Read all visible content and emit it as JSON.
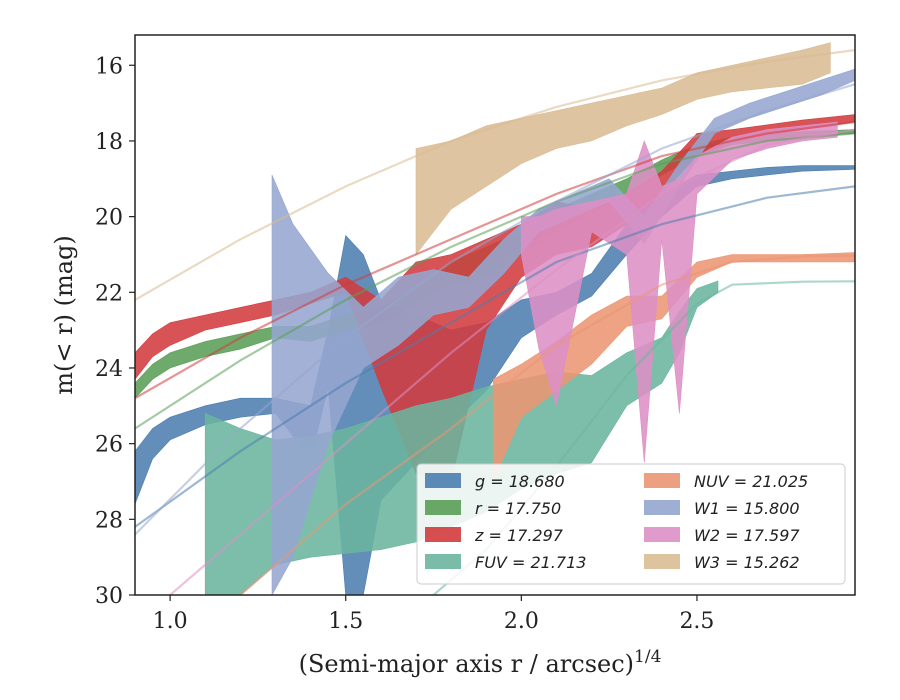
{
  "chart_data": {
    "type": "area",
    "xlabel": "(Semi-major axis r / arcsec)",
    "xlabel_superscript": "1/4",
    "ylabel": "m(< r) (mag)",
    "xlim": [
      0.9,
      2.95
    ],
    "ylim": [
      30,
      15.2
    ],
    "y_inverted": true,
    "xticks": [
      1.0,
      1.5,
      2.0,
      2.5
    ],
    "xtick_labels": [
      "1.0",
      "1.5",
      "2.0",
      "2.5"
    ],
    "yticks": [
      16,
      18,
      20,
      22,
      24,
      26,
      28,
      30
    ],
    "ytick_labels": [
      "16",
      "18",
      "20",
      "22",
      "24",
      "26",
      "28",
      "30"
    ],
    "grid": false,
    "legend_position": "lower-right",
    "series": [
      {
        "name": "g",
        "legend_label": "g = 18.680",
        "color": "#4c7eaf",
        "band": [
          [
            0.9,
            26.2,
            27.6
          ],
          [
            0.95,
            25.6,
            26.4
          ],
          [
            1.0,
            25.3,
            25.9
          ],
          [
            1.1,
            25.0,
            25.5
          ],
          [
            1.2,
            24.8,
            25.3
          ],
          [
            1.3,
            24.8,
            25.2
          ],
          [
            1.4,
            25.0,
            26.4
          ],
          [
            1.45,
            23.0,
            24.5
          ],
          [
            1.5,
            20.5,
            30.0
          ],
          [
            1.55,
            21.0,
            30.0
          ],
          [
            1.6,
            22.2,
            27.5
          ],
          [
            1.7,
            22.6,
            26.5
          ],
          [
            1.8,
            23.0,
            25.5
          ],
          [
            1.9,
            22.8,
            24.6
          ],
          [
            2.0,
            22.2,
            23.2
          ],
          [
            2.1,
            22.0,
            22.6
          ],
          [
            2.2,
            21.5,
            22.1
          ],
          [
            2.3,
            20.2,
            21.0
          ],
          [
            2.4,
            19.4,
            20.0
          ],
          [
            2.5,
            18.9,
            19.2
          ],
          [
            2.6,
            18.8,
            19.0
          ],
          [
            2.7,
            18.7,
            18.9
          ],
          [
            2.8,
            18.65,
            18.8
          ],
          [
            2.95,
            18.65,
            18.75
          ]
        ],
        "fit": [
          [
            0.9,
            28.2
          ],
          [
            1.2,
            26.2
          ],
          [
            1.5,
            24.4
          ],
          [
            1.8,
            22.8
          ],
          [
            2.1,
            21.2
          ],
          [
            2.4,
            20.2
          ],
          [
            2.7,
            19.5
          ],
          [
            2.95,
            19.2
          ]
        ]
      },
      {
        "name": "r",
        "legend_label": "r = 17.750",
        "color": "#5a9e57",
        "band": [
          [
            0.9,
            24.4,
            24.8
          ],
          [
            0.95,
            23.9,
            24.3
          ],
          [
            1.0,
            23.6,
            24.0
          ],
          [
            1.1,
            23.3,
            23.7
          ],
          [
            1.2,
            23.1,
            23.5
          ],
          [
            1.3,
            22.9,
            23.2
          ],
          [
            1.4,
            22.9,
            23.3
          ],
          [
            1.5,
            22.6,
            23.0
          ],
          [
            1.6,
            22.4,
            22.8
          ],
          [
            1.7,
            21.9,
            22.3
          ],
          [
            1.8,
            21.2,
            21.8
          ],
          [
            1.9,
            20.8,
            21.6
          ],
          [
            2.0,
            20.4,
            21.0
          ],
          [
            2.1,
            19.8,
            20.4
          ],
          [
            2.2,
            19.4,
            19.9
          ],
          [
            2.3,
            19.0,
            19.4
          ],
          [
            2.4,
            18.5,
            18.9
          ],
          [
            2.5,
            18.1,
            18.4
          ],
          [
            2.6,
            17.9,
            18.1
          ],
          [
            2.8,
            17.75,
            17.9
          ],
          [
            2.95,
            17.7,
            17.8
          ]
        ],
        "fit": [
          [
            0.9,
            25.6
          ],
          [
            1.2,
            23.8
          ],
          [
            1.5,
            22.2
          ],
          [
            1.8,
            20.8
          ],
          [
            2.1,
            19.6
          ],
          [
            2.4,
            18.6
          ],
          [
            2.7,
            18.0
          ],
          [
            2.95,
            17.8
          ]
        ]
      },
      {
        "name": "z",
        "legend_label": "z = 17.297",
        "color": "#d13b3d",
        "band": [
          [
            0.9,
            23.6,
            24.3
          ],
          [
            0.95,
            23.1,
            23.7
          ],
          [
            1.0,
            22.8,
            23.4
          ],
          [
            1.1,
            22.6,
            23.0
          ],
          [
            1.2,
            22.4,
            22.8
          ],
          [
            1.3,
            22.2,
            22.6
          ],
          [
            1.4,
            22.0,
            22.3
          ],
          [
            1.5,
            21.6,
            22.0
          ],
          [
            1.6,
            22.2,
            24.5
          ],
          [
            1.7,
            21.2,
            26.8
          ],
          [
            1.8,
            21.0,
            27.0
          ],
          [
            1.9,
            20.6,
            23.0
          ],
          [
            2.0,
            20.2,
            21.6
          ],
          [
            2.1,
            19.6,
            21.0
          ],
          [
            2.2,
            19.8,
            20.8
          ],
          [
            2.3,
            19.4,
            20.2
          ],
          [
            2.4,
            18.8,
            19.4
          ],
          [
            2.5,
            17.8,
            18.4
          ],
          [
            2.6,
            17.7,
            18.0
          ],
          [
            2.8,
            17.45,
            17.7
          ],
          [
            2.95,
            17.3,
            17.5
          ]
        ],
        "fit": [
          [
            0.9,
            24.8
          ],
          [
            1.2,
            23.2
          ],
          [
            1.5,
            21.8
          ],
          [
            1.8,
            20.6
          ],
          [
            2.1,
            19.4
          ],
          [
            2.4,
            18.4
          ],
          [
            2.7,
            17.8
          ],
          [
            2.95,
            17.5
          ]
        ]
      },
      {
        "name": "FUV",
        "legend_label": "FUV = 21.713",
        "color": "#6bb59e",
        "band": [
          [
            1.1,
            25.2,
            30.0
          ],
          [
            1.2,
            25.6,
            30.0
          ],
          [
            1.3,
            25.9,
            29.2
          ],
          [
            1.4,
            25.8,
            29.0
          ],
          [
            1.5,
            25.6,
            28.9
          ],
          [
            1.6,
            25.3,
            28.8
          ],
          [
            1.7,
            25.0,
            28.6
          ],
          [
            1.8,
            24.8,
            28.2
          ],
          [
            1.9,
            24.5,
            27.8
          ],
          [
            2.0,
            24.3,
            27.2
          ],
          [
            2.1,
            24.1,
            26.8
          ],
          [
            2.2,
            24.2,
            26.5
          ],
          [
            2.3,
            23.6,
            25.0
          ],
          [
            2.4,
            23.2,
            24.4
          ],
          [
            2.45,
            22.5,
            23.6
          ],
          [
            2.5,
            21.9,
            22.4
          ],
          [
            2.56,
            21.7,
            22.0
          ]
        ],
        "fit": [
          [
            1.75,
            30.0
          ],
          [
            1.9,
            28.8
          ],
          [
            2.1,
            26.6
          ],
          [
            2.3,
            24.2
          ],
          [
            2.5,
            22.3
          ],
          [
            2.6,
            21.8
          ],
          [
            2.8,
            21.72
          ],
          [
            2.95,
            21.71
          ]
        ]
      },
      {
        "name": "NUV",
        "legend_label": "NUV = 21.025",
        "color": "#eb9673",
        "band": [
          [
            1.92,
            24.3,
            27.0
          ],
          [
            2.0,
            23.9,
            25.3
          ],
          [
            2.1,
            23.3,
            24.6
          ],
          [
            2.2,
            22.6,
            23.9
          ],
          [
            2.3,
            22.1,
            22.9
          ],
          [
            2.4,
            22.1,
            22.7
          ],
          [
            2.5,
            21.2,
            21.6
          ],
          [
            2.6,
            21.0,
            21.2
          ],
          [
            2.8,
            21.0,
            21.2
          ],
          [
            2.95,
            20.95,
            21.2
          ]
        ],
        "fit": [
          [
            1.2,
            30.0
          ],
          [
            1.5,
            27.6
          ],
          [
            1.8,
            25.6
          ],
          [
            2.1,
            23.4
          ],
          [
            2.4,
            21.8
          ],
          [
            2.6,
            21.2
          ],
          [
            2.8,
            21.05
          ],
          [
            2.95,
            21.03
          ]
        ]
      },
      {
        "name": "W1",
        "legend_label": "W1 = 15.800",
        "color": "#95a6cf",
        "band": [
          [
            1.29,
            18.9,
            30.0
          ],
          [
            1.35,
            20.2,
            29.0
          ],
          [
            1.45,
            21.5,
            26.0
          ],
          [
            1.55,
            22.4,
            24.0
          ],
          [
            1.65,
            21.6,
            23.4
          ],
          [
            1.75,
            21.4,
            22.6
          ],
          [
            1.85,
            21.6,
            22.4
          ],
          [
            1.95,
            20.6,
            21.5
          ],
          [
            2.05,
            19.8,
            20.4
          ],
          [
            2.15,
            19.4,
            20.0
          ],
          [
            2.25,
            19.0,
            19.6
          ],
          [
            2.35,
            20.0,
            20.7
          ],
          [
            2.45,
            18.6,
            19.2
          ],
          [
            2.55,
            17.4,
            17.8
          ],
          [
            2.65,
            17.0,
            17.4
          ],
          [
            2.75,
            16.7,
            17.1
          ],
          [
            2.85,
            16.4,
            16.8
          ],
          [
            2.95,
            16.1,
            16.4
          ]
        ],
        "fit": [
          [
            0.9,
            28.4
          ],
          [
            1.2,
            25.6
          ],
          [
            1.5,
            23.2
          ],
          [
            1.8,
            21.2
          ],
          [
            2.1,
            19.6
          ],
          [
            2.4,
            18.2
          ],
          [
            2.7,
            17.2
          ],
          [
            2.95,
            16.5
          ]
        ]
      },
      {
        "name": "W2",
        "legend_label": "W2 = 17.597",
        "color": "#dd8fc5",
        "band": [
          [
            2.0,
            20.0,
            21.0
          ],
          [
            2.05,
            20.0,
            23.5
          ],
          [
            2.1,
            19.8,
            25.0
          ],
          [
            2.2,
            19.6,
            20.4
          ],
          [
            2.3,
            19.4,
            21.0
          ],
          [
            2.35,
            18.0,
            26.5
          ],
          [
            2.4,
            19.2,
            20.6
          ],
          [
            2.45,
            19.0,
            25.2
          ],
          [
            2.5,
            18.4,
            19.4
          ],
          [
            2.6,
            17.9,
            18.5
          ],
          [
            2.7,
            17.7,
            18.2
          ],
          [
            2.8,
            17.6,
            18.0
          ],
          [
            2.9,
            17.5,
            17.9
          ]
        ],
        "fit": [
          [
            1.0,
            30.0
          ],
          [
            1.2,
            28.4
          ],
          [
            1.5,
            26.0
          ],
          [
            1.8,
            23.6
          ],
          [
            2.1,
            21.4
          ],
          [
            2.4,
            19.4
          ],
          [
            2.7,
            18.1
          ],
          [
            2.95,
            17.7
          ]
        ]
      },
      {
        "name": "W3",
        "legend_label": "W3 = 15.262",
        "color": "#d9bc93",
        "band": [
          [
            1.7,
            18.2,
            21.0
          ],
          [
            1.8,
            18.0,
            19.8
          ],
          [
            1.9,
            17.6,
            19.2
          ],
          [
            2.0,
            17.4,
            18.6
          ],
          [
            2.1,
            17.2,
            18.2
          ],
          [
            2.2,
            17.0,
            18.0
          ],
          [
            2.3,
            16.8,
            17.6
          ],
          [
            2.4,
            16.6,
            17.3
          ],
          [
            2.5,
            16.2,
            16.9
          ],
          [
            2.6,
            16.0,
            16.7
          ],
          [
            2.7,
            15.8,
            16.6
          ],
          [
            2.8,
            15.6,
            16.5
          ],
          [
            2.88,
            15.4,
            16.2
          ]
        ],
        "fit": [
          [
            0.9,
            22.2
          ],
          [
            1.2,
            20.6
          ],
          [
            1.5,
            19.2
          ],
          [
            1.8,
            18.0
          ],
          [
            2.1,
            17.1
          ],
          [
            2.4,
            16.4
          ],
          [
            2.7,
            15.9
          ],
          [
            2.95,
            15.6
          ]
        ]
      }
    ]
  },
  "legend": {
    "columns": [
      [
        "g",
        "r",
        "z",
        "FUV"
      ],
      [
        "NUV",
        "W1",
        "W2",
        "W3"
      ]
    ]
  }
}
